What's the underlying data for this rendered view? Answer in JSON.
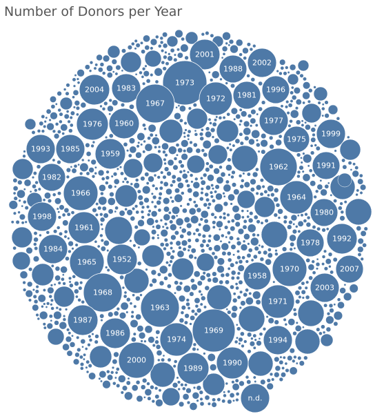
{
  "title": "Number of Donors per Year",
  "colors": {
    "bubble": "#4e79a7",
    "bubble_stroke": "#ffffff",
    "label": "#ffffff"
  },
  "chart_data": {
    "type": "packed-bubble",
    "title": "Number of Donors per Year",
    "labeled_bubbles": [
      "2001",
      "1988",
      "2002",
      "1973",
      "2004",
      "1983",
      "1996",
      "1981",
      "1972",
      "1967",
      "1977",
      "1976",
      "1960",
      "1975",
      "1999",
      "1993",
      "1985",
      "1959",
      "1962",
      "1991",
      "1982",
      "1966",
      "1964",
      "1998",
      "1980",
      "1961",
      "1978",
      "1992",
      "1984",
      "1952",
      "1965",
      "1970",
      "2007",
      "1958",
      "2003",
      "1968",
      "1963",
      "1971",
      "1987",
      "1969",
      "1986",
      "1974",
      "1994",
      "2000",
      "1989",
      "1990",
      "n.d."
    ]
  }
}
